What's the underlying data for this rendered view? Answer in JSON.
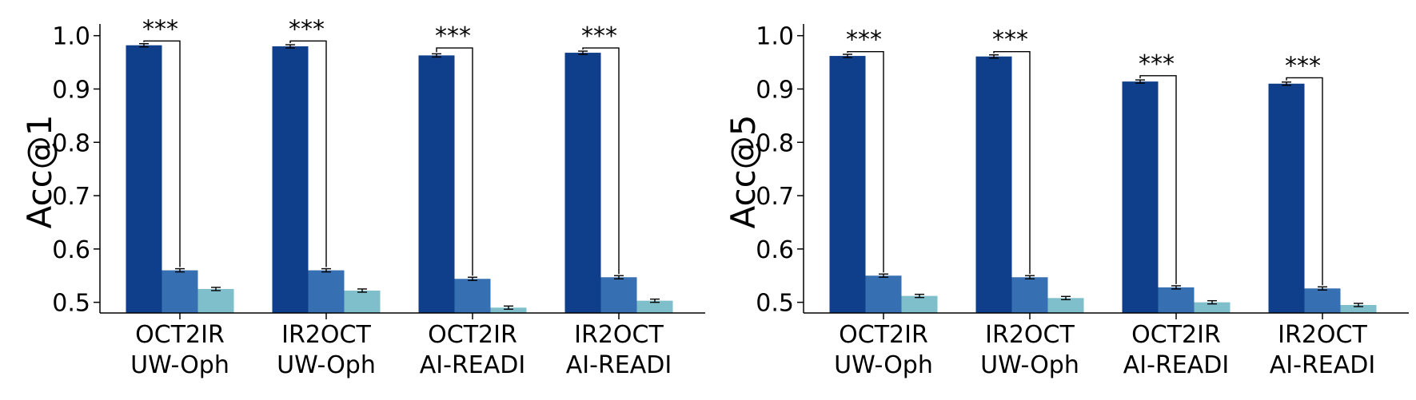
{
  "colors": {
    "series": [
      "#0f3f8a",
      "#3670b3",
      "#7fbfcc"
    ],
    "axis": "#000000",
    "bracket": "#000000"
  },
  "chart_data": [
    {
      "type": "bar",
      "title": "",
      "xlabel": "",
      "ylabel": "Acc@1",
      "ylim": [
        0.48,
        1.01
      ],
      "yticks": [
        "0.5",
        "0.6",
        "0.7",
        "0.8",
        "0.9",
        "1.0"
      ],
      "categories": [
        [
          "OCT2IR",
          "UW-Oph"
        ],
        [
          "IR2OCT",
          "UW-Oph"
        ],
        [
          "OCT2IR",
          "AI-READI"
        ],
        [
          "IR2OCT",
          "AI-READI"
        ]
      ],
      "series": [
        {
          "values": [
            0.982,
            0.98,
            0.963,
            0.968
          ],
          "errors": [
            0.003,
            0.003,
            0.003,
            0.003
          ]
        },
        {
          "values": [
            0.56,
            0.56,
            0.544,
            0.547
          ],
          "errors": [
            0.003,
            0.003,
            0.003,
            0.003
          ]
        },
        {
          "values": [
            0.525,
            0.522,
            0.49,
            0.503
          ],
          "errors": [
            0.003,
            0.003,
            0.003,
            0.003
          ]
        }
      ],
      "significance": [
        {
          "label": "***",
          "bracket_top": 0.99
        },
        {
          "label": "***",
          "bracket_top": 0.99
        },
        {
          "label": "***",
          "bracket_top": 0.977
        },
        {
          "label": "***",
          "bracket_top": 0.977
        }
      ],
      "grid": false,
      "legend": "none"
    },
    {
      "type": "bar",
      "title": "",
      "xlabel": "",
      "ylabel": "Acc@5",
      "ylim": [
        0.48,
        1.01
      ],
      "yticks": [
        "0.5",
        "0.6",
        "0.7",
        "0.8",
        "0.9",
        "1.0"
      ],
      "categories": [
        [
          "OCT2IR",
          "UW-Oph"
        ],
        [
          "IR2OCT",
          "UW-Oph"
        ],
        [
          "OCT2IR",
          "AI-READI"
        ],
        [
          "IR2OCT",
          "AI-READI"
        ]
      ],
      "series": [
        {
          "values": [
            0.962,
            0.961,
            0.914,
            0.91
          ],
          "errors": [
            0.003,
            0.003,
            0.003,
            0.003
          ]
        },
        {
          "values": [
            0.55,
            0.547,
            0.528,
            0.526
          ],
          "errors": [
            0.003,
            0.003,
            0.003,
            0.003
          ]
        },
        {
          "values": [
            0.512,
            0.508,
            0.5,
            0.495
          ],
          "errors": [
            0.003,
            0.003,
            0.003,
            0.003
          ]
        }
      ],
      "significance": [
        {
          "label": "***",
          "bracket_top": 0.97
        },
        {
          "label": "***",
          "bracket_top": 0.97
        },
        {
          "label": "***",
          "bracket_top": 0.925
        },
        {
          "label": "***",
          "bracket_top": 0.921
        }
      ],
      "grid": false,
      "legend": "none"
    }
  ]
}
